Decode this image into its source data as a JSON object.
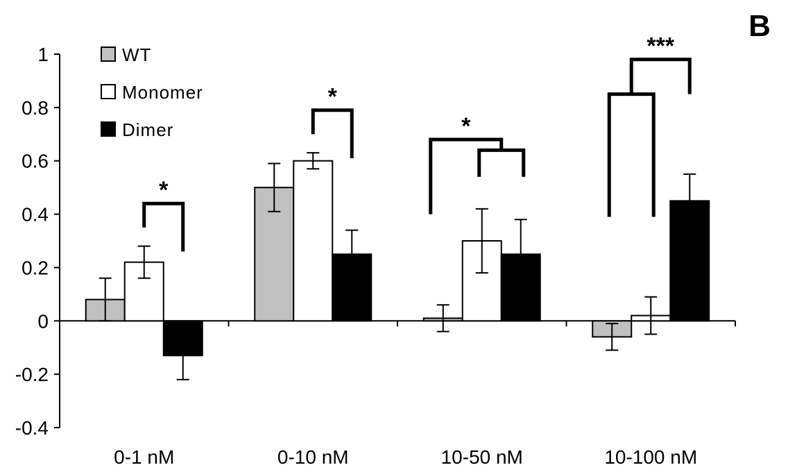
{
  "panel_label": "B",
  "chart_data": {
    "type": "bar",
    "categories": [
      "0-1 nM",
      "0-10 nM",
      "10-50 nM",
      "10-100 nM"
    ],
    "series": [
      {
        "name": "WT",
        "values": [
          0.08,
          0.5,
          0.01,
          -0.06
        ],
        "errors": [
          0.08,
          0.09,
          0.05,
          0.05
        ],
        "color": "#c0c0c0"
      },
      {
        "name": "Monomer",
        "values": [
          0.22,
          0.6,
          0.3,
          0.02
        ],
        "errors": [
          0.06,
          0.03,
          0.12,
          0.07
        ],
        "color": "#ffffff"
      },
      {
        "name": "Dimer",
        "values": [
          -0.13,
          0.25,
          0.25,
          0.45
        ],
        "errors": [
          0.09,
          0.09,
          0.13,
          0.1
        ],
        "color": "#000000"
      }
    ],
    "ylim": [
      -0.4,
      1.0
    ],
    "yticks": [
      "-0.4",
      "-0.2",
      "0",
      "0.2",
      "0.4",
      "0.6",
      "0.8",
      "1"
    ],
    "ytick_values": [
      -0.4,
      -0.2,
      0,
      0.2,
      0.4,
      0.6,
      0.8,
      1.0
    ],
    "legend_position": "top-left",
    "grid": false,
    "annotations": [
      {
        "text": "*",
        "category": "0-1 nM",
        "between": [
          "Monomer",
          "Dimer"
        ]
      },
      {
        "text": "*",
        "category": "0-10 nM",
        "between": [
          "Monomer",
          "Dimer"
        ]
      },
      {
        "text": "*",
        "category": "10-50 nM",
        "between": [
          "WT",
          "Monomer",
          "Dimer"
        ]
      },
      {
        "text": "***",
        "category": "10-100 nM",
        "between": [
          "WT",
          "Monomer",
          "Dimer"
        ]
      }
    ]
  }
}
